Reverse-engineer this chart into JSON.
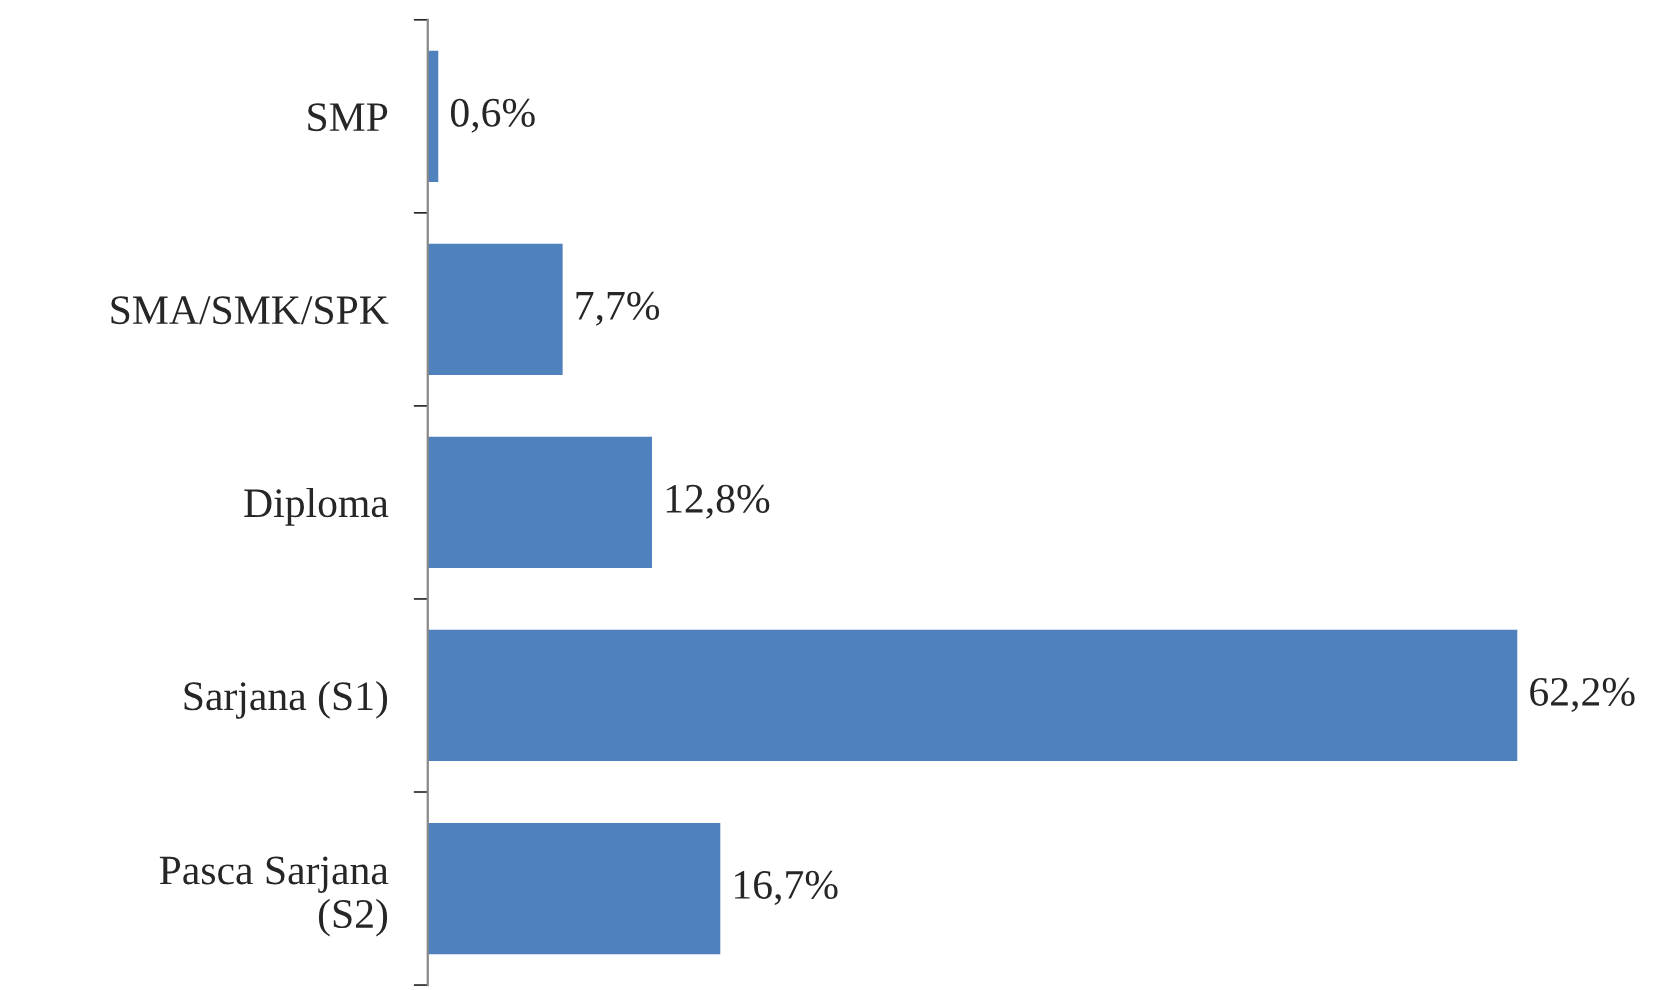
{
  "chart_data": {
    "type": "bar",
    "orientation": "horizontal",
    "categories": [
      "SMP",
      "SMA/SMK/SPK",
      "Diploma",
      "Sarjana (S1)",
      "Pasca Sarjana\n(S2)"
    ],
    "values": [
      0.6,
      7.7,
      12.8,
      62.2,
      16.7
    ],
    "value_labels": [
      "0,6%",
      "7,7%",
      "12,8%",
      "62,2%",
      "16,7%"
    ],
    "color": "#4f81bd",
    "grid": false,
    "legend": false
  }
}
